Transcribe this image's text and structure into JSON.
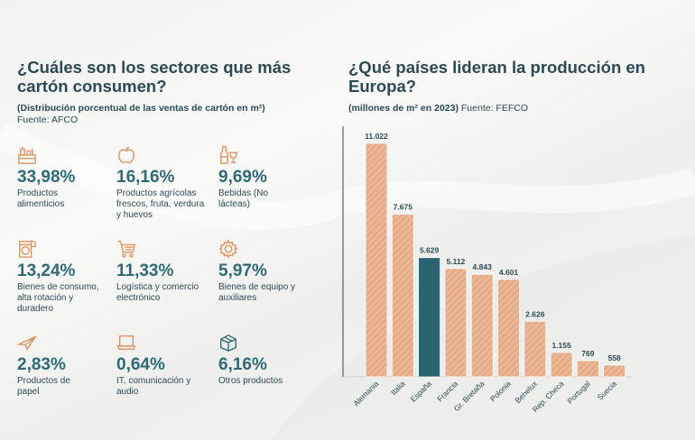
{
  "left": {
    "title": "¿Cuáles son los sectores que más cartón consumen?",
    "subtitle_bold": "(Distribución porcentual de las ventas de cartón en m²)",
    "source": "Fuente: AFCO",
    "sectors": [
      {
        "icon": "food-products-icon",
        "percent": "33,98%",
        "label": "Productos alimenticios"
      },
      {
        "icon": "apple-icon",
        "percent": "16,16%",
        "label": "Productos agrícolas frescos, fruta, verdura y huevos"
      },
      {
        "icon": "bottle-glass-icon",
        "percent": "9,69%",
        "label": "Bebidas (No lácteas)"
      },
      {
        "icon": "washing-machine-icon",
        "percent": "13,24%",
        "label": "Bienes de consumo, alta rotación y duradero"
      },
      {
        "icon": "shopping-cart-icon",
        "percent": "11,33%",
        "label": "Logística y comercio electrónico"
      },
      {
        "icon": "gear-icon",
        "percent": "5,97%",
        "label": "Bienes de equipo y auxiliares"
      },
      {
        "icon": "paper-plane-icon",
        "percent": "2,83%",
        "label": "Productos de papel"
      },
      {
        "icon": "laptop-icon",
        "percent": "0,64%",
        "label": "IT, comunicación y audio"
      },
      {
        "icon": "boxes-icon",
        "percent": "6,16%",
        "label": "Otros productos"
      }
    ]
  },
  "right": {
    "title": "¿Qué países lideran la producción en Europa?",
    "subtitle_bold": "(millones de m² en 2023)",
    "source": "Fuente: FEFCO"
  },
  "colors": {
    "bar": "#e8b08e",
    "bar_highlight": "#2a6470",
    "icon": "#e3915f",
    "percent": "#2e6a78",
    "text": "#2c4a55"
  },
  "chart_data": {
    "type": "bar",
    "title": "¿Qué países lideran la producción en Europa?",
    "ylabel": "millones de m² en 2023",
    "categories": [
      "Alemania",
      "Italia",
      "España",
      "Francia",
      "Gr. Bretaña",
      "Polonia",
      "Benelux",
      "Rep. Checa",
      "Portugal",
      "Suecia"
    ],
    "values": [
      11022,
      7675,
      5629,
      5112,
      4843,
      4601,
      2626,
      1155,
      769,
      558
    ],
    "value_labels": [
      "11.022",
      "7.675",
      "5.629",
      "5.112",
      "4.843",
      "4.601",
      "2.626",
      "1.155",
      "769",
      "558"
    ],
    "highlight": "España",
    "ylim": [
      0,
      11022
    ],
    "grid": false
  }
}
